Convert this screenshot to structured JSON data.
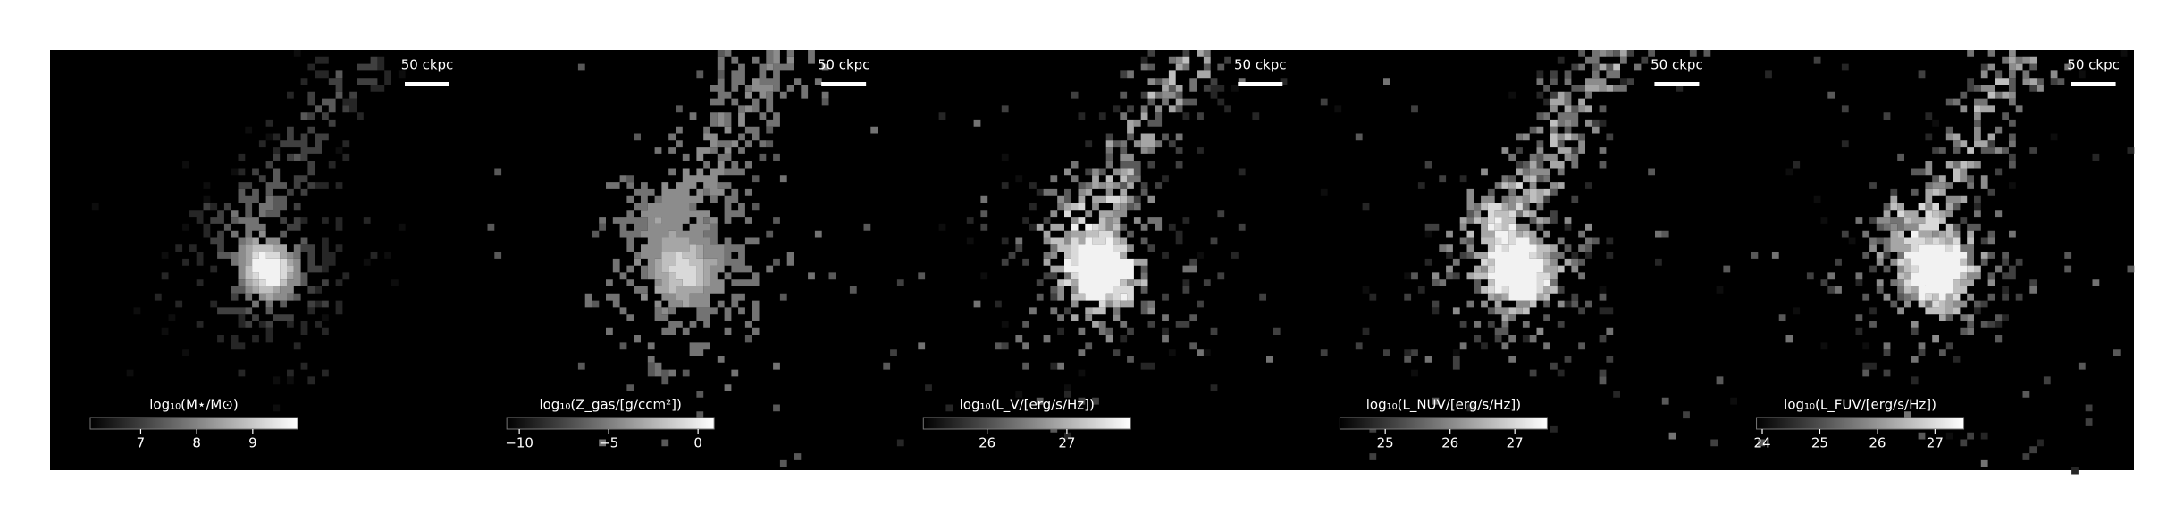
{
  "chart_data": [
    {
      "type": "colorbar",
      "label": "log₁₀(M⋆/M⊙)",
      "scale_bar": "50 ckpc",
      "xlim": [
        6.1,
        9.8
      ],
      "xticks": [
        7,
        8,
        9
      ]
    },
    {
      "type": "colorbar",
      "label": "log₁₀(Z_gas/[g/ccm²])",
      "scale_bar": "50 ckpc",
      "xlim": [
        -10.7,
        0.9
      ],
      "xticks": [
        {
          "value": -10,
          "label": "−10"
        },
        {
          "value": -5,
          "label": "−5"
        },
        0
      ]
    },
    {
      "type": "colorbar",
      "label": "log₁₀(L_V/[erg/s/Hz])",
      "scale_bar": "50 ckpc",
      "xlim": [
        25.2,
        27.8
      ],
      "xticks": [
        26,
        27
      ]
    },
    {
      "type": "colorbar",
      "label": "log₁₀(L_NUV/[erg/s/Hz])",
      "scale_bar": "50 ckpc",
      "xlim": [
        24.3,
        27.5
      ],
      "xticks": [
        25,
        26,
        27
      ]
    },
    {
      "type": "colorbar",
      "label": "log₁₀(L_FUV/[erg/s/Hz])",
      "scale_bar": "50 ckpc",
      "xlim": [
        23.9,
        27.5
      ],
      "xticks": [
        24,
        25,
        26,
        27
      ]
    }
  ]
}
